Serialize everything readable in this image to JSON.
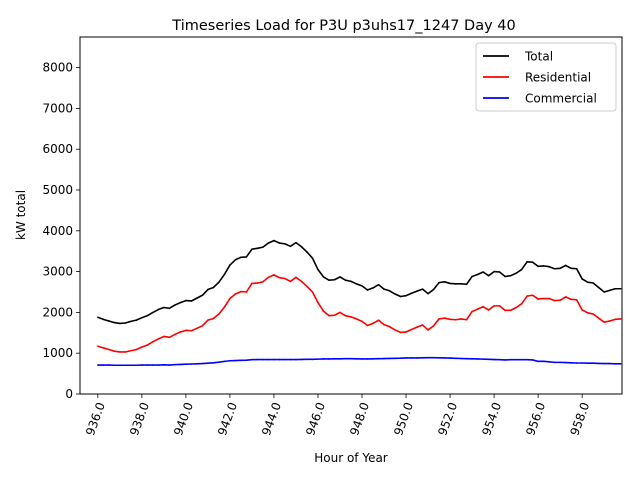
{
  "chart_data": {
    "type": "line",
    "title": "Timeseries Load for P3U p3uhs17_1247  Day 40",
    "xlabel": "Hour of Year",
    "ylabel": "kW total",
    "xlim": [
      935.19,
      959.81
    ],
    "ylim": [
      0,
      8750
    ],
    "xticks": [
      936,
      938,
      940,
      942,
      944,
      946,
      948,
      950,
      952,
      954,
      956,
      958
    ],
    "xtick_labels": [
      "936.0",
      "938.0",
      "940.0",
      "942.0",
      "944.0",
      "946.0",
      "948.0",
      "950.0",
      "952.0",
      "954.0",
      "956.0",
      "958.0"
    ],
    "yticks": [
      0,
      1000,
      2000,
      3000,
      4000,
      5000,
      6000,
      7000,
      8000
    ],
    "ytick_labels": [
      "0",
      "1000",
      "2000",
      "3000",
      "4000",
      "5000",
      "6000",
      "7000",
      "8000"
    ],
    "grid": false,
    "legend_position": "top-right",
    "x": [
      936.0,
      936.25,
      936.5,
      936.75,
      937.0,
      937.25,
      937.5,
      937.75,
      938.0,
      938.25,
      938.5,
      938.75,
      939.0,
      939.25,
      939.5,
      939.75,
      940.0,
      940.25,
      940.5,
      940.75,
      941.0,
      941.25,
      941.5,
      941.75,
      942.0,
      942.25,
      942.5,
      942.75,
      943.0,
      943.25,
      943.5,
      943.75,
      944.0,
      944.25,
      944.5,
      944.75,
      945.0,
      945.25,
      945.5,
      945.75,
      946.0,
      946.25,
      946.5,
      946.75,
      947.0,
      947.25,
      947.5,
      947.75,
      948.0,
      948.25,
      948.5,
      948.75,
      949.0,
      949.25,
      949.5,
      949.75,
      950.0,
      950.25,
      950.5,
      950.75,
      951.0,
      951.25,
      951.5,
      951.75,
      952.0,
      952.25,
      952.5,
      952.75,
      953.0,
      953.25,
      953.5,
      953.75,
      954.0,
      954.25,
      954.5,
      954.75,
      955.0,
      955.25,
      955.5,
      955.75,
      956.0,
      956.25,
      956.5,
      956.75,
      957.0,
      957.25,
      957.5,
      957.75,
      958.0,
      958.25,
      958.5,
      958.75,
      959.0,
      959.25,
      959.5,
      959.75
    ],
    "series": [
      {
        "name": "Total",
        "color": "#000000",
        "values": [
          1880,
          1830,
          1790,
          1750,
          1730,
          1740,
          1780,
          1810,
          1870,
          1920,
          2000,
          2070,
          2120,
          2100,
          2180,
          2240,
          2290,
          2280,
          2350,
          2420,
          2560,
          2610,
          2740,
          2930,
          3160,
          3290,
          3350,
          3360,
          3550,
          3570,
          3600,
          3700,
          3760,
          3700,
          3680,
          3620,
          3710,
          3610,
          3480,
          3330,
          3050,
          2870,
          2790,
          2800,
          2870,
          2790,
          2760,
          2700,
          2650,
          2550,
          2600,
          2680,
          2570,
          2530,
          2450,
          2390,
          2410,
          2470,
          2520,
          2570,
          2460,
          2560,
          2730,
          2750,
          2710,
          2700,
          2700,
          2690,
          2880,
          2930,
          2990,
          2900,
          3000,
          2990,
          2880,
          2900,
          2960,
          3050,
          3240,
          3230,
          3130,
          3140,
          3120,
          3070,
          3080,
          3150,
          3080,
          3070,
          2820,
          2740,
          2720,
          2610,
          2500,
          2540,
          2580,
          2580
        ]
      },
      {
        "name": "Residential",
        "color": "#ff0000",
        "values": [
          1170,
          1130,
          1090,
          1050,
          1030,
          1030,
          1060,
          1090,
          1150,
          1200,
          1280,
          1350,
          1410,
          1390,
          1460,
          1520,
          1560,
          1550,
          1610,
          1670,
          1810,
          1850,
          1960,
          2130,
          2340,
          2450,
          2510,
          2500,
          2710,
          2720,
          2750,
          2860,
          2920,
          2850,
          2830,
          2760,
          2860,
          2760,
          2640,
          2500,
          2240,
          2030,
          1920,
          1930,
          2000,
          1920,
          1890,
          1840,
          1780,
          1680,
          1730,
          1810,
          1700,
          1650,
          1570,
          1510,
          1520,
          1580,
          1640,
          1690,
          1570,
          1670,
          1840,
          1860,
          1830,
          1820,
          1840,
          1820,
          2020,
          2080,
          2140,
          2060,
          2160,
          2160,
          2050,
          2050,
          2120,
          2210,
          2400,
          2420,
          2330,
          2340,
          2340,
          2290,
          2300,
          2380,
          2320,
          2310,
          2060,
          1990,
          1960,
          1860,
          1760,
          1790,
          1830,
          1840
        ]
      },
      {
        "name": "Commercial",
        "color": "#0000ff",
        "values": [
          710,
          710,
          710,
          705,
          705,
          705,
          705,
          705,
          710,
          710,
          710,
          710,
          715,
          710,
          720,
          725,
          730,
          735,
          740,
          745,
          755,
          765,
          780,
          800,
          815,
          820,
          825,
          830,
          840,
          845,
          845,
          845,
          845,
          845,
          845,
          845,
          845,
          848,
          850,
          850,
          855,
          860,
          860,
          862,
          862,
          865,
          865,
          862,
          860,
          860,
          862,
          865,
          868,
          872,
          875,
          878,
          885,
          885,
          885,
          888,
          890,
          890,
          888,
          885,
          880,
          875,
          870,
          865,
          862,
          860,
          855,
          850,
          845,
          840,
          835,
          840,
          840,
          840,
          840,
          835,
          800,
          800,
          790,
          775,
          775,
          770,
          765,
          760,
          760,
          755,
          755,
          750,
          745,
          745,
          740,
          740
        ]
      }
    ]
  }
}
